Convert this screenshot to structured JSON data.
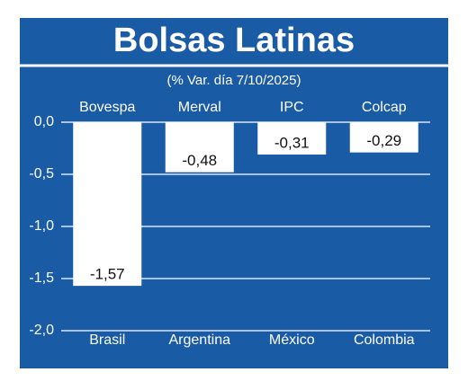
{
  "chart_data": {
    "type": "bar",
    "title": "Bolsas Latinas",
    "subtitle": "(% Var. día 7/10/2025)",
    "index_names": [
      "Bovespa",
      "Merval",
      "IPC",
      "Colcap"
    ],
    "categories": [
      "Brasil",
      "Argentina",
      "México",
      "Colombia"
    ],
    "values": [
      -1.57,
      -0.48,
      -0.31,
      -0.29
    ],
    "value_labels": [
      "-1,57",
      "-0,48",
      "-0,31",
      "-0,29"
    ],
    "color": "#ffffff",
    "ylim": [
      -2.0,
      0.0
    ],
    "yticks": [
      {
        "value": 0.0,
        "label": "0,0"
      },
      {
        "value": -0.5,
        "label": "-0,5"
      },
      {
        "value": -1.0,
        "label": "-1,0"
      },
      {
        "value": -1.5,
        "label": "-1,5"
      },
      {
        "value": -2.0,
        "label": "-2,0"
      }
    ],
    "grid": true
  }
}
